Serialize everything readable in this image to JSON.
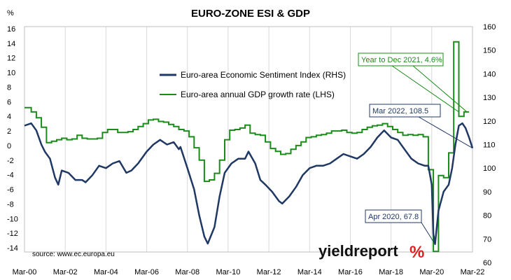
{
  "chart_data": {
    "type": "line",
    "title": "EURO-ZONE ESI & GDP",
    "y_left_unit": "%",
    "y_left_ticks": [
      16,
      14,
      12,
      10,
      8,
      6,
      4,
      2,
      0,
      -2,
      -4,
      -6,
      -8,
      -10,
      -12,
      -14
    ],
    "y_left_lim": [
      -15,
      16
    ],
    "y_right_ticks": [
      160,
      150,
      140,
      130,
      120,
      110,
      100,
      90,
      80,
      70,
      60
    ],
    "y_right_lim": [
      60,
      160
    ],
    "x_ticks": [
      "Mar-00",
      "Mar-02",
      "Mar-04",
      "Mar-06",
      "Mar-08",
      "Mar-10",
      "Mar-12",
      "Mar-14",
      "Mar-16",
      "Mar-18",
      "Mar-20",
      "Mar-22"
    ],
    "x_lim": [
      2000.17,
      2022.17
    ],
    "grid": "vertical",
    "legend_placement": "top-center",
    "series": [
      {
        "name": "Euro-area Economic Sentiment Index (RHS)",
        "axis": "right",
        "color": "#1f3864",
        "x": [
          2000.17,
          2000.5,
          2000.75,
          2001.0,
          2001.17,
          2001.42,
          2001.67,
          2001.83,
          2002.0,
          2002.33,
          2002.67,
          2003.0,
          2003.17,
          2003.5,
          2003.83,
          2004.17,
          2004.5,
          2004.83,
          2005.17,
          2005.42,
          2005.75,
          2006.17,
          2006.5,
          2006.83,
          2007.17,
          2007.5,
          2007.75,
          2007.83,
          2008.17,
          2008.5,
          2008.75,
          2009.0,
          2009.17,
          2009.5,
          2009.75,
          2010.0,
          2010.33,
          2010.67,
          2011.0,
          2011.17,
          2011.5,
          2011.75,
          2012.0,
          2012.33,
          2012.67,
          2012.83,
          2013.17,
          2013.5,
          2013.83,
          2014.17,
          2014.5,
          2014.83,
          2015.17,
          2015.5,
          2015.83,
          2016.17,
          2016.5,
          2016.83,
          2017.17,
          2017.5,
          2017.83,
          2018.17,
          2018.5,
          2018.83,
          2019.17,
          2019.5,
          2019.83,
          2020.0,
          2020.17,
          2020.25,
          2020.33,
          2020.5,
          2020.75,
          2021.0,
          2021.17,
          2021.33,
          2021.5,
          2021.67,
          2021.83,
          2022.0,
          2022.17
        ],
        "y": [
          118,
          119,
          116,
          110,
          107,
          104,
          96,
          93,
          99,
          98,
          95,
          95,
          94,
          97,
          101,
          100,
          102,
          103,
          98,
          99,
          102,
          107,
          110,
          112,
          110,
          111,
          108,
          109,
          100,
          91,
          80,
          71,
          68,
          75,
          88,
          98,
          102,
          104,
          104,
          107,
          102,
          95,
          93,
          90,
          86,
          85,
          88,
          92,
          97,
          100,
          101,
          101,
          102,
          104,
          106,
          105,
          104,
          106,
          109,
          113,
          116,
          113,
          112,
          108,
          104,
          102,
          101,
          101,
          93,
          72,
          67.8,
          82,
          90,
          93,
          100,
          110,
          118,
          119,
          117,
          113,
          108.5
        ]
      },
      {
        "name": "Euro-area annual GDP growth rate (LHS)",
        "axis": "left",
        "color": "#1a8c1a",
        "x": [
          2000.17,
          2000.5,
          2000.75,
          2001.0,
          2001.25,
          2001.5,
          2001.75,
          2002.0,
          2002.25,
          2002.5,
          2002.75,
          2003.0,
          2003.25,
          2003.5,
          2003.75,
          2004.0,
          2004.25,
          2004.5,
          2004.75,
          2005.0,
          2005.25,
          2005.5,
          2005.75,
          2006.0,
          2006.25,
          2006.5,
          2006.75,
          2007.0,
          2007.25,
          2007.5,
          2007.75,
          2008.0,
          2008.25,
          2008.5,
          2008.75,
          2009.0,
          2009.25,
          2009.5,
          2009.75,
          2010.0,
          2010.25,
          2010.5,
          2010.75,
          2011.0,
          2011.25,
          2011.5,
          2011.75,
          2012.0,
          2012.25,
          2012.5,
          2012.75,
          2013.0,
          2013.25,
          2013.5,
          2013.75,
          2014.0,
          2014.25,
          2014.5,
          2014.75,
          2015.0,
          2015.25,
          2015.5,
          2015.75,
          2016.0,
          2016.25,
          2016.5,
          2016.75,
          2017.0,
          2017.25,
          2017.5,
          2017.75,
          2018.0,
          2018.25,
          2018.5,
          2018.75,
          2019.0,
          2019.25,
          2019.5,
          2019.75,
          2020.0,
          2020.25,
          2020.5,
          2020.75,
          2021.0,
          2021.25,
          2021.5,
          2021.75
        ],
        "y": [
          5.2,
          4.6,
          3.8,
          2.5,
          0.4,
          0.6,
          0.8,
          1.0,
          0.8,
          0.9,
          1.4,
          1.0,
          0.9,
          0.9,
          1.0,
          1.8,
          2.2,
          2.2,
          1.8,
          1.8,
          1.9,
          2.2,
          2.6,
          3.0,
          3.5,
          3.6,
          3.3,
          3.2,
          2.9,
          2.6,
          2.2,
          2.0,
          1.2,
          -0.3,
          -2.0,
          -4.9,
          -4.7,
          -3.8,
          -2.0,
          0.8,
          2.1,
          2.2,
          2.4,
          2.8,
          1.7,
          1.5,
          1.4,
          0.5,
          -0.4,
          -0.8,
          -1.2,
          -1.1,
          -0.5,
          0.0,
          0.5,
          1.1,
          1.2,
          1.4,
          1.5,
          1.7,
          2.0,
          2.0,
          2.1,
          1.8,
          1.7,
          1.8,
          2.2,
          2.5,
          2.7,
          2.8,
          3.0,
          2.6,
          2.2,
          1.8,
          1.4,
          1.5,
          1.4,
          1.5,
          1.2,
          -3.3,
          -14.5,
          -4.1,
          -4.4,
          -1.0,
          14.2,
          4.0,
          4.6
        ]
      }
    ],
    "annotations": [
      {
        "text": "Year to Dec 2021, 4.6%",
        "series": 1,
        "x": 2021.9,
        "y": 4.6,
        "color": "#1a8c1a"
      },
      {
        "text": "Mar 2022, 108.5",
        "series": 0,
        "x": 2022.17,
        "y": 108.5,
        "color": "#1f3864"
      },
      {
        "text": "Apr 2020, 67.8",
        "series": 0,
        "x": 2020.33,
        "y": 67.8,
        "color": "#1f3864"
      }
    ]
  },
  "source": "source: www.ec.europa.eu",
  "brand": {
    "name": "yieldreport",
    "symbol": "%",
    "symbol_color": "#e02020"
  }
}
